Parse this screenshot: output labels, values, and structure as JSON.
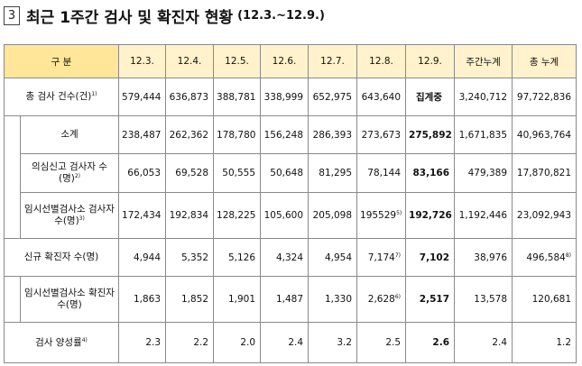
{
  "title": {
    "section_number": "3",
    "text": "최근 1주간 검사 및 확진자 현황",
    "date_range": "(12.3.~12.9.)"
  },
  "table": {
    "headers": [
      "구 분",
      "12.3.",
      "12.4.",
      "12.5.",
      "12.6.",
      "12.7.",
      "12.8.",
      "12.9.",
      "주간누계",
      "총 누계"
    ],
    "rows": [
      {
        "label": "총 검사 건수(건)",
        "sup": "1)",
        "indent": false,
        "cells": [
          {
            "v": "579,444"
          },
          {
            "v": "636,873"
          },
          {
            "v": "388,781"
          },
          {
            "v": "338,999"
          },
          {
            "v": "652,975"
          },
          {
            "v": "643,640"
          },
          {
            "v": "집계중"
          },
          {
            "v": "3,240,712"
          },
          {
            "v": "97,722,836"
          }
        ]
      },
      {
        "label": "소계",
        "sup": "",
        "indent": true,
        "cells": [
          {
            "v": "238,487"
          },
          {
            "v": "262,362"
          },
          {
            "v": "178,780"
          },
          {
            "v": "156,248"
          },
          {
            "v": "286,393"
          },
          {
            "v": "273,673"
          },
          {
            "v": "275,892"
          },
          {
            "v": "1,671,835"
          },
          {
            "v": "40,963,764"
          }
        ]
      },
      {
        "label": "의심신고 검사자 수(명)",
        "sup": "2)",
        "indent": true,
        "cells": [
          {
            "v": "66,053"
          },
          {
            "v": "69,528"
          },
          {
            "v": "50,555"
          },
          {
            "v": "50,648"
          },
          {
            "v": "81,295"
          },
          {
            "v": "78,144"
          },
          {
            "v": "83,166"
          },
          {
            "v": "479,389"
          },
          {
            "v": "17,870,821"
          }
        ]
      },
      {
        "label": "임시선별검사소 검사자 수(명)",
        "sup": "3)",
        "indent": true,
        "cells": [
          {
            "v": "172,434"
          },
          {
            "v": "192,834"
          },
          {
            "v": "128,225"
          },
          {
            "v": "105,600"
          },
          {
            "v": "205,098"
          },
          {
            "v": "195529",
            "sup": "5)"
          },
          {
            "v": "192,726"
          },
          {
            "v": "1,192,446"
          },
          {
            "v": "23,092,943"
          }
        ]
      },
      {
        "label": "신규 확진자 수(명)",
        "sup": "",
        "indent": false,
        "cells": [
          {
            "v": "4,944"
          },
          {
            "v": "5,352"
          },
          {
            "v": "5,126"
          },
          {
            "v": "4,324"
          },
          {
            "v": "4,954"
          },
          {
            "v": "7,174",
            "sup": "7)"
          },
          {
            "v": "7,102"
          },
          {
            "v": "38,976"
          },
          {
            "v": "496,584",
            "sup": "8)"
          }
        ]
      },
      {
        "label": "임시선별검사소 확진자 수(명)",
        "sup": "",
        "indent": true,
        "cells": [
          {
            "v": "1,863"
          },
          {
            "v": "1,852"
          },
          {
            "v": "1,901"
          },
          {
            "v": "1,487"
          },
          {
            "v": "1,330"
          },
          {
            "v": "2,628",
            "sup": "6)"
          },
          {
            "v": "2,517"
          },
          {
            "v": "13,578"
          },
          {
            "v": "120,681"
          }
        ]
      },
      {
        "label": "검사 양성률",
        "sup": "4)",
        "indent": false,
        "cells": [
          {
            "v": "2.3"
          },
          {
            "v": "2.2"
          },
          {
            "v": "2.0"
          },
          {
            "v": "2.4"
          },
          {
            "v": "3.2"
          },
          {
            "v": "2.5"
          },
          {
            "v": "2.6"
          },
          {
            "v": "2.4"
          },
          {
            "v": "1.2"
          }
        ]
      }
    ]
  }
}
